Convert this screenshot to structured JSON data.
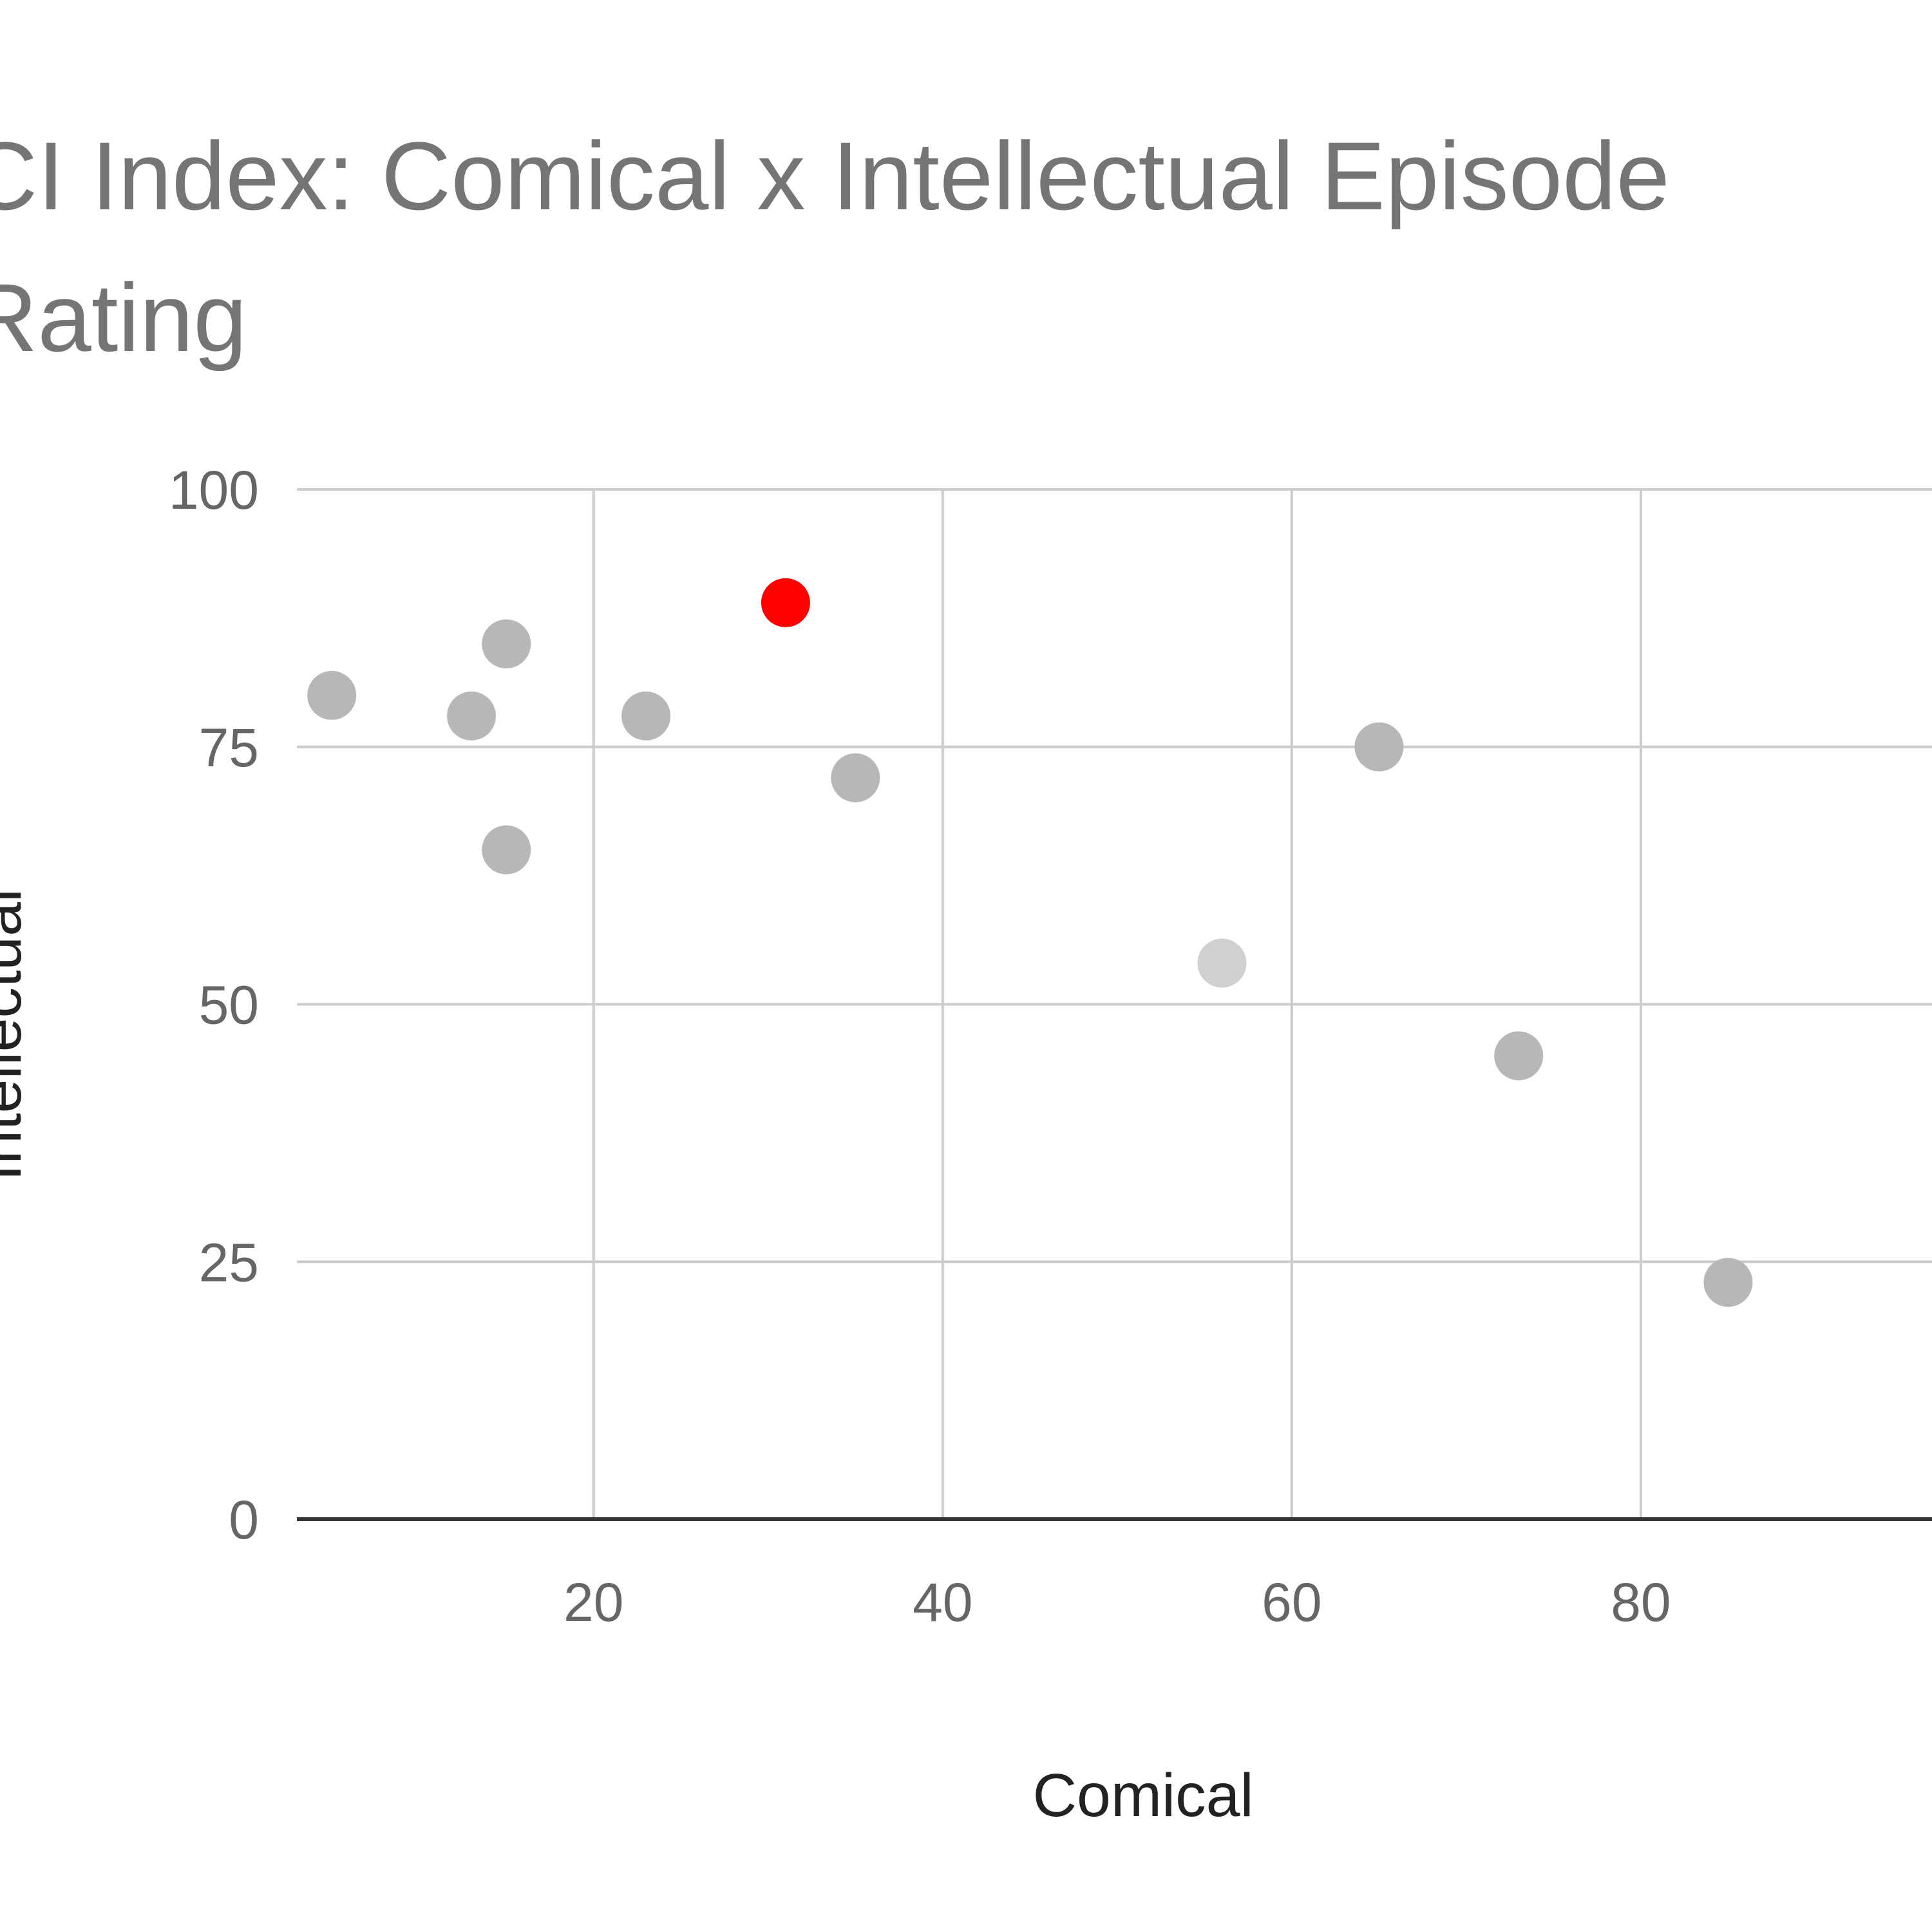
{
  "chart_data": {
    "type": "scatter",
    "title": [
      "CI Index: Comical x Intellectual Episode",
      "Rating"
    ],
    "x_label": "Comical",
    "y_label": "Intellectual",
    "x": [
      5,
      13,
      15,
      15,
      23,
      31,
      35,
      56,
      65,
      73,
      85
    ],
    "values": [
      80,
      78,
      85,
      65,
      78,
      89,
      72,
      54,
      75,
      45,
      23
    ],
    "colors": [
      "#b7b7b7",
      "#b7b7b7",
      "#b7b7b7",
      "#b7b7b7",
      "#b7b7b7",
      "#ff0000",
      "#b7b7b7",
      "#d0d0d0",
      "#b7b7b7",
      "#b7b7b7",
      "#b7b7b7"
    ],
    "xlim": [
      3,
      100
    ],
    "ylim": [
      0,
      100
    ],
    "xticks": [
      20,
      40,
      60,
      80
    ],
    "yticks": [
      0,
      25,
      50,
      75,
      100
    ],
    "grid": true
  }
}
